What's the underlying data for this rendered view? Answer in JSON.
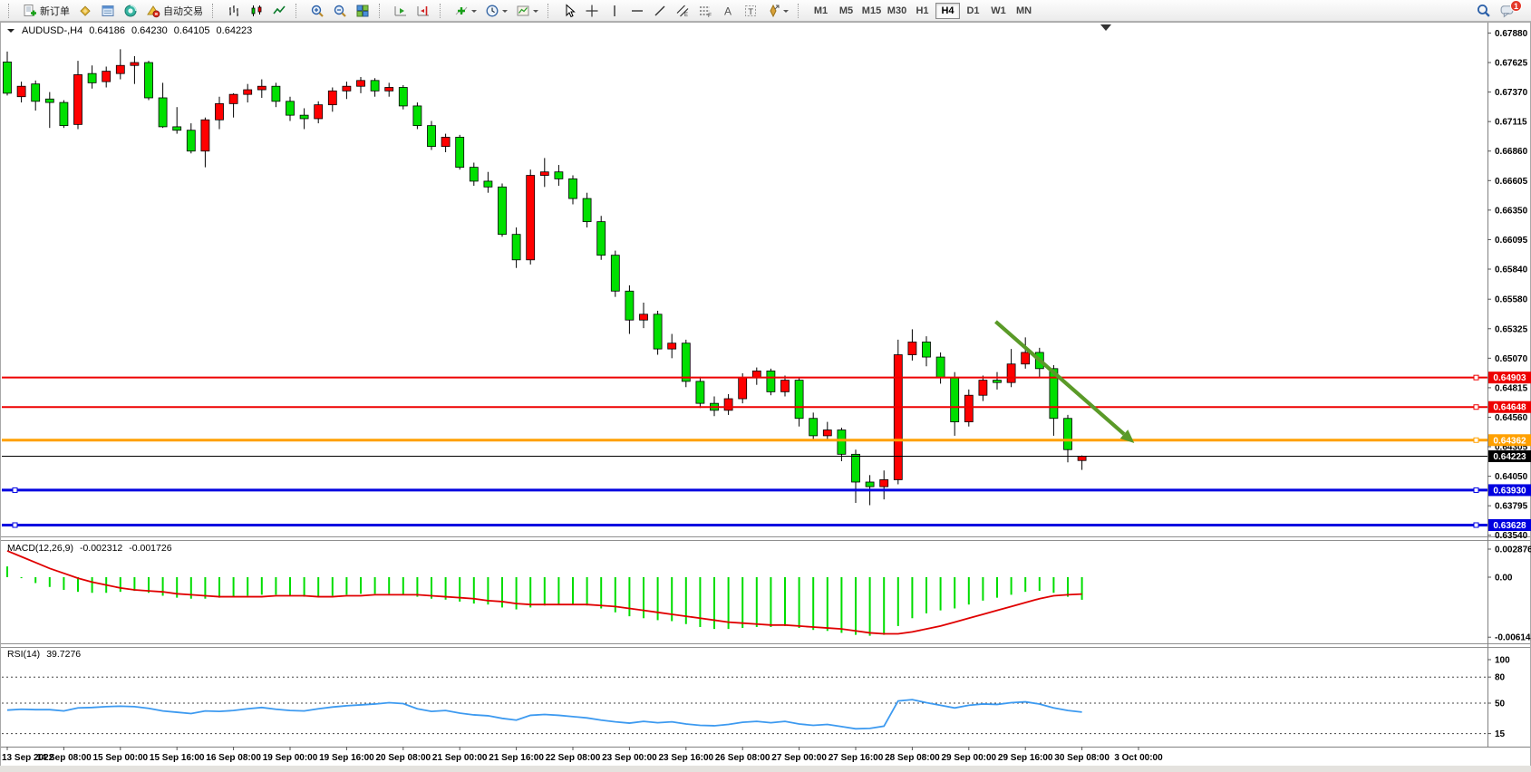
{
  "title": {
    "symbol_period": "AUDUSD-,H4",
    "open": "0.64186",
    "high": "0.64230",
    "low": "0.64105",
    "close": "0.64223"
  },
  "toolbar": {
    "new_order": "新订单",
    "auto_trading": "自动交易",
    "timeframes": [
      "M1",
      "M5",
      "M15",
      "M30",
      "H1",
      "H4",
      "D1",
      "W1",
      "MN"
    ],
    "active_timeframe": "H4",
    "notification_badge": "1"
  },
  "indicators": {
    "macd": {
      "name": "MACD(12,26,9)",
      "value": "-0.002312",
      "signal": "-0.001726"
    },
    "rsi": {
      "name": "RSI(14)",
      "value": "39.7276"
    }
  },
  "chart_data": {
    "type": "candlestick",
    "symbol": "AUDUSD-",
    "timeframe": "H4",
    "current_bar": {
      "open": 0.64186,
      "high": 0.6423,
      "low": 0.64105,
      "close": 0.64223
    },
    "up_color": "#ff0000",
    "down_color": "#00e000",
    "candles": [
      [
        0.6763,
        0.6772,
        0.6734,
        0.6736
      ],
      [
        0.6733,
        0.6746,
        0.6728,
        0.6742
      ],
      [
        0.6744,
        0.6747,
        0.6721,
        0.6729
      ],
      [
        0.6731,
        0.6737,
        0.6706,
        0.6728
      ],
      [
        0.6728,
        0.673,
        0.6706,
        0.6708
      ],
      [
        0.6709,
        0.6764,
        0.6705,
        0.6752
      ],
      [
        0.6753,
        0.676,
        0.674,
        0.6745
      ],
      [
        0.6746,
        0.6759,
        0.6741,
        0.6755
      ],
      [
        0.6753,
        0.6774,
        0.6748,
        0.676
      ],
      [
        0.676,
        0.6768,
        0.6744,
        0.67625
      ],
      [
        0.67625,
        0.6764,
        0.673,
        0.6732
      ],
      [
        0.6732,
        0.6745,
        0.6706,
        0.6707
      ],
      [
        0.6707,
        0.6724,
        0.6701,
        0.6704
      ],
      [
        0.6704,
        0.671,
        0.6684,
        0.6686
      ],
      [
        0.6686,
        0.6715,
        0.6672,
        0.6713
      ],
      [
        0.6713,
        0.6733,
        0.6705,
        0.6727
      ],
      [
        0.6727,
        0.6736,
        0.6715,
        0.6735
      ],
      [
        0.6735,
        0.6744,
        0.6728,
        0.6739
      ],
      [
        0.6739,
        0.6748,
        0.6732,
        0.6742
      ],
      [
        0.6742,
        0.6745,
        0.6724,
        0.6729
      ],
      [
        0.6729,
        0.6733,
        0.6712,
        0.6717
      ],
      [
        0.6717,
        0.6723,
        0.6705,
        0.6714
      ],
      [
        0.6714,
        0.6729,
        0.671,
        0.6726
      ],
      [
        0.6726,
        0.6741,
        0.672,
        0.6738
      ],
      [
        0.6738,
        0.6746,
        0.6731,
        0.6742
      ],
      [
        0.6742,
        0.675,
        0.6736,
        0.6747
      ],
      [
        0.6747,
        0.6749,
        0.6733,
        0.6738
      ],
      [
        0.6738,
        0.6745,
        0.6733,
        0.6741
      ],
      [
        0.6741,
        0.6743,
        0.6722,
        0.6725
      ],
      [
        0.6725,
        0.6728,
        0.6705,
        0.6708
      ],
      [
        0.6708,
        0.6712,
        0.6687,
        0.669
      ],
      [
        0.669,
        0.6701,
        0.6685,
        0.6698
      ],
      [
        0.6698,
        0.67,
        0.667,
        0.6672
      ],
      [
        0.6672,
        0.6676,
        0.6656,
        0.666
      ],
      [
        0.666,
        0.6668,
        0.665,
        0.6655
      ],
      [
        0.6655,
        0.6658,
        0.6612,
        0.6614
      ],
      [
        0.6614,
        0.662,
        0.6585,
        0.6592
      ],
      [
        0.6592,
        0.667,
        0.6588,
        0.6665
      ],
      [
        0.6665,
        0.668,
        0.6655,
        0.6668
      ],
      [
        0.6668,
        0.6674,
        0.6656,
        0.6662
      ],
      [
        0.6662,
        0.6665,
        0.664,
        0.6645
      ],
      [
        0.6645,
        0.665,
        0.662,
        0.6625
      ],
      [
        0.6625,
        0.663,
        0.6592,
        0.6596
      ],
      [
        0.6596,
        0.66,
        0.656,
        0.6565
      ],
      [
        0.6565,
        0.657,
        0.6528,
        0.654
      ],
      [
        0.654,
        0.6555,
        0.6533,
        0.6545
      ],
      [
        0.6545,
        0.6548,
        0.651,
        0.6515
      ],
      [
        0.6515,
        0.6528,
        0.6507,
        0.652
      ],
      [
        0.652,
        0.6523,
        0.6482,
        0.6487
      ],
      [
        0.6487,
        0.6491,
        0.6464,
        0.6468
      ],
      [
        0.6468,
        0.6474,
        0.6457,
        0.6462
      ],
      [
        0.6462,
        0.6476,
        0.6458,
        0.6472
      ],
      [
        0.6472,
        0.6494,
        0.6468,
        0.649
      ],
      [
        0.649,
        0.6499,
        0.6484,
        0.6496
      ],
      [
        0.6496,
        0.6498,
        0.6475,
        0.6478
      ],
      [
        0.6478,
        0.6492,
        0.6474,
        0.6488
      ],
      [
        0.6488,
        0.649,
        0.6448,
        0.6455
      ],
      [
        0.6455,
        0.646,
        0.6437,
        0.644
      ],
      [
        0.644,
        0.6452,
        0.6436,
        0.6445
      ],
      [
        0.6445,
        0.6447,
        0.6418,
        0.6424
      ],
      [
        0.6424,
        0.6428,
        0.6382,
        0.64
      ],
      [
        0.64,
        0.6406,
        0.638,
        0.6396
      ],
      [
        0.6396,
        0.641,
        0.6385,
        0.6402
      ],
      [
        0.6402,
        0.6523,
        0.6398,
        0.651
      ],
      [
        0.651,
        0.6532,
        0.6505,
        0.6521
      ],
      [
        0.6521,
        0.6526,
        0.65,
        0.6508
      ],
      [
        0.6508,
        0.6512,
        0.6485,
        0.649
      ],
      [
        0.649,
        0.6495,
        0.644,
        0.6452
      ],
      [
        0.6452,
        0.648,
        0.6448,
        0.6475
      ],
      [
        0.6475,
        0.6492,
        0.647,
        0.6488
      ],
      [
        0.6488,
        0.6495,
        0.648,
        0.6486
      ],
      [
        0.6486,
        0.6515,
        0.6482,
        0.6502
      ],
      [
        0.6502,
        0.6525,
        0.6498,
        0.6512
      ],
      [
        0.6512,
        0.6516,
        0.649,
        0.6498
      ],
      [
        0.6498,
        0.6501,
        0.644,
        0.6455
      ],
      [
        0.6455,
        0.6458,
        0.6417,
        0.6428
      ],
      [
        0.64186,
        0.6423,
        0.64105,
        0.64223
      ]
    ],
    "price_axis_ticks": [
      "0.67880",
      "0.67625",
      "0.67370",
      "0.67115",
      "0.66860",
      "0.66605",
      "0.66350",
      "0.66095",
      "0.65840",
      "0.65580",
      "0.65325",
      "0.65070",
      "0.64815",
      "0.64560",
      "0.64305",
      "0.64050",
      "0.63795",
      "0.63540"
    ],
    "time_axis_labels": [
      "13 Sep 2022",
      "14 Sep 08:00",
      "15 Sep 00:00",
      "15 Sep 16:00",
      "16 Sep 08:00",
      "19 Sep 00:00",
      "19 Sep 16:00",
      "20 Sep 08:00",
      "21 Sep 00:00",
      "21 Sep 16:00",
      "22 Sep 08:00",
      "23 Sep 00:00",
      "23 Sep 16:00",
      "26 Sep 08:00",
      "27 Sep 00:00",
      "27 Sep 16:00",
      "28 Sep 08:00",
      "29 Sep 00:00",
      "29 Sep 16:00",
      "30 Sep 08:00",
      "3 Oct 00:00"
    ],
    "horizontal_lines": [
      {
        "price": 0.64903,
        "label": "0.64903",
        "color": "#ee0000",
        "width": 2,
        "anchors": true,
        "left_anchor": false
      },
      {
        "price": 0.64648,
        "label": "0.64648",
        "color": "#ee0000",
        "width": 2,
        "anchors": true,
        "left_anchor": false
      },
      {
        "price": 0.64362,
        "label": "0.64362",
        "color": "#ffa000",
        "width": 3,
        "anchors": true,
        "left_anchor": false
      },
      {
        "price": 0.64223,
        "label": "0.64223",
        "color": "#000000",
        "width": 1,
        "anchors": false,
        "left_anchor": false
      },
      {
        "price": 0.6393,
        "label": "0.63930",
        "color": "#0000e0",
        "width": 3,
        "anchors": true,
        "left_anchor": true
      },
      {
        "price": 0.63628,
        "label": "0.63628",
        "color": "#0000e0",
        "width": 3,
        "anchors": true,
        "left_anchor": true
      }
    ],
    "trend_arrow": {
      "bar_start": 69.9,
      "price_start": 0.65386,
      "bar_end": 79.7,
      "price_end": 0.64337,
      "color": "#5a9a28"
    },
    "macd": {
      "name": "MACD(12,26,9)",
      "value": -0.002312,
      "signal_value": -0.001726,
      "axis": [
        {
          "v": 0.002876,
          "t": "0.002876"
        },
        {
          "v": 0,
          "t": "0.00"
        },
        {
          "v": -0.006142,
          "t": "-0.006142"
        }
      ],
      "values": [
        0.0011,
        -0.0001,
        -0.0006,
        -0.001,
        -0.0013,
        -0.0015,
        -0.0016,
        -0.0016,
        -0.0015,
        -0.0014,
        -0.0016,
        -0.0019,
        -0.0021,
        -0.0022,
        -0.0022,
        -0.0021,
        -0.002,
        -0.0019,
        -0.0018,
        -0.0018,
        -0.0019,
        -0.002,
        -0.002,
        -0.0019,
        -0.0018,
        -0.0017,
        -0.0017,
        -0.0017,
        -0.0018,
        -0.002,
        -0.0022,
        -0.0023,
        -0.0025,
        -0.0027,
        -0.0028,
        -0.0031,
        -0.0033,
        -0.0031,
        -0.0029,
        -0.0028,
        -0.0028,
        -0.0029,
        -0.0032,
        -0.0036,
        -0.004,
        -0.0042,
        -0.0044,
        -0.0045,
        -0.0048,
        -0.0051,
        -0.0053,
        -0.0053,
        -0.0052,
        -0.0051,
        -0.0051,
        -0.005,
        -0.0052,
        -0.0054,
        -0.0055,
        -0.0057,
        -0.0059,
        -0.006,
        -0.0059,
        -0.005,
        -0.0042,
        -0.0037,
        -0.0034,
        -0.0032,
        -0.0028,
        -0.0024,
        -0.0021,
        -0.0018,
        -0.0015,
        -0.0014,
        -0.0016,
        -0.002,
        -0.002312
      ],
      "signal": [
        0.0027,
        0.0021,
        0.0015,
        0.0009,
        0.0004,
        -0.0001,
        -0.0005,
        -0.0008,
        -0.0011,
        -0.0013,
        -0.0014,
        -0.0015,
        -0.0017,
        -0.0018,
        -0.0019,
        -0.002,
        -0.002,
        -0.002,
        -0.002,
        -0.0019,
        -0.0019,
        -0.0019,
        -0.002,
        -0.002,
        -0.0019,
        -0.0019,
        -0.0018,
        -0.0018,
        -0.0018,
        -0.0018,
        -0.0019,
        -0.002,
        -0.0021,
        -0.0022,
        -0.0024,
        -0.0025,
        -0.0027,
        -0.0028,
        -0.0028,
        -0.0028,
        -0.0028,
        -0.0028,
        -0.0029,
        -0.003,
        -0.0032,
        -0.0034,
        -0.0036,
        -0.0038,
        -0.004,
        -0.0042,
        -0.0044,
        -0.0046,
        -0.0047,
        -0.0048,
        -0.0049,
        -0.0049,
        -0.005,
        -0.0051,
        -0.0052,
        -0.0053,
        -0.0055,
        -0.0057,
        -0.0058,
        -0.0058,
        -0.0056,
        -0.0053,
        -0.005,
        -0.0046,
        -0.0042,
        -0.0038,
        -0.0034,
        -0.003,
        -0.0026,
        -0.0022,
        -0.0019,
        -0.0018,
        -0.001726
      ]
    },
    "rsi": {
      "name": "RSI(14)",
      "value": 39.7276,
      "levels": [
        80,
        50,
        15
      ],
      "axis": [
        {
          "v": 100,
          "t": "100"
        },
        {
          "v": 80,
          "t": "80"
        },
        {
          "v": 50,
          "t": "50"
        },
        {
          "v": 15,
          "t": "15"
        }
      ],
      "values": [
        42,
        43,
        42.5,
        42.5,
        41,
        44.5,
        45,
        46,
        46.5,
        46,
        44,
        41,
        39.5,
        38,
        41,
        40.5,
        41.5,
        43.5,
        45,
        43,
        41.5,
        41,
        43.5,
        45.5,
        47,
        48,
        49,
        50.5,
        49.5,
        43.5,
        40.5,
        41.5,
        38.5,
        36.5,
        35.5,
        32.5,
        30.5,
        36,
        37,
        36,
        34.5,
        33,
        30.5,
        28.5,
        27,
        29,
        27.5,
        28.5,
        26,
        24.5,
        24,
        25.5,
        28,
        29,
        27.5,
        29,
        26,
        24.5,
        25.5,
        23,
        20.5,
        21,
        23.5,
        52.5,
        54,
        50.5,
        47.5,
        44.5,
        47.5,
        49,
        48.5,
        50.5,
        51.5,
        49,
        44.5,
        41.5,
        39.7276
      ]
    }
  }
}
